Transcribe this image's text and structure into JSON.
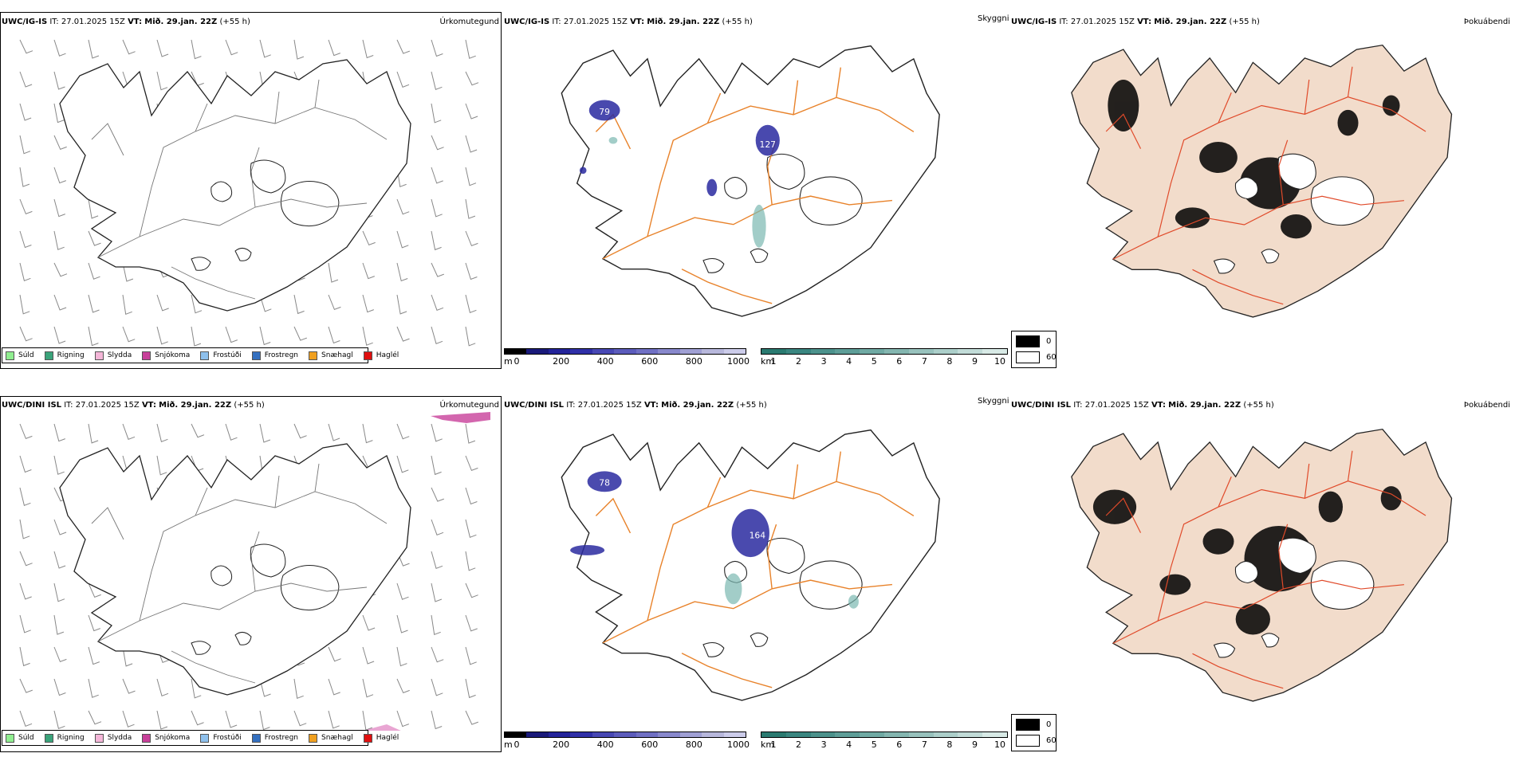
{
  "top": {
    "precip": {
      "model": "UWC/IG-IS",
      "it_label": "IT:",
      "it_time": "27.01.2025 15Z",
      "vt_label": "VT:",
      "vt_time": "Mið. 29.jan. 22Z",
      "lead": "(+55 h)",
      "title": "Úrkomutegund"
    },
    "vis": {
      "model": "UWC/IG-IS",
      "it_label": "IT:",
      "it_time": "27.01.2025 15Z",
      "vt_label": "VT:",
      "vt_time": "Mið. 29.jan. 22Z",
      "lead": "(+55 h)",
      "title": "Skyggni"
    },
    "fog": {
      "model": "UWC/IG-IS",
      "it_label": "IT:",
      "it_time": "27.01.2025 15Z",
      "vt_label": "VT:",
      "vt_time": "Mið. 29.jan. 22Z",
      "lead": "(+55 h)",
      "title": "Þokuábendi"
    },
    "map_labels": [
      "79",
      "127"
    ]
  },
  "bottom": {
    "precip": {
      "model": "UWC/DINI ISL",
      "it_label": "IT:",
      "it_time": "27.01.2025 15Z",
      "vt_label": "VT:",
      "vt_time": "Mið. 29.jan. 22Z",
      "lead": "(+55 h)",
      "title": "Úrkomutegund"
    },
    "vis": {
      "model": "UWC/DINI ISL",
      "it_label": "IT:",
      "it_time": "27.01.2025 15Z",
      "vt_label": "VT:",
      "vt_time": "Mið. 29.jan. 22Z",
      "lead": "(+55 h)",
      "title": "Skyggni"
    },
    "fog": {
      "model": "UWC/DINI ISL",
      "it_label": "IT:",
      "it_time": "27.01.2025 15Z",
      "vt_label": "VT:",
      "vt_time": "Mið. 29.jan. 22Z",
      "lead": "(+55 h)",
      "title": "Þokuábendi"
    },
    "map_labels": [
      "78",
      "164"
    ]
  },
  "precip_legend": [
    {
      "label": "Súld",
      "color": "#90ee90"
    },
    {
      "label": "Rigning",
      "color": "#3aa37a"
    },
    {
      "label": "Slydda",
      "color": "#f4b6d8"
    },
    {
      "label": "Snjókoma",
      "color": "#c8409a"
    },
    {
      "label": "Frostúði",
      "color": "#8ec0ec"
    },
    {
      "label": "Frostregn",
      "color": "#3470c0"
    },
    {
      "label": "Snæhagl",
      "color": "#f0a020"
    },
    {
      "label": "Haglél",
      "color": "#e01010"
    }
  ],
  "height_bar": {
    "unit": "m",
    "ticks": [
      "0",
      "200",
      "400",
      "600",
      "800",
      "1000"
    ],
    "colors": [
      "#000000",
      "#1a1a7a",
      "#24249a",
      "#3030a8",
      "#4848b4",
      "#5c5cbc",
      "#7070c4",
      "#8888cc",
      "#a0a0d4",
      "#b8b8dc",
      "#ccccea"
    ]
  },
  "vis_bar": {
    "unit": "km",
    "ticks": [
      "1",
      "2",
      "3",
      "4",
      "5",
      "6",
      "7",
      "8",
      "9",
      "10"
    ],
    "colors": [
      "#2a7a70",
      "#3a8680",
      "#4c928c",
      "#5e9e98",
      "#70aaa4",
      "#84b6b0",
      "#98c2bd",
      "#accfca",
      "#c2dcd8",
      "#d8eae6"
    ]
  },
  "fog_legend": [
    {
      "label": "0",
      "color": "#000000"
    },
    {
      "label": "60",
      "color": "#ffffff"
    }
  ]
}
